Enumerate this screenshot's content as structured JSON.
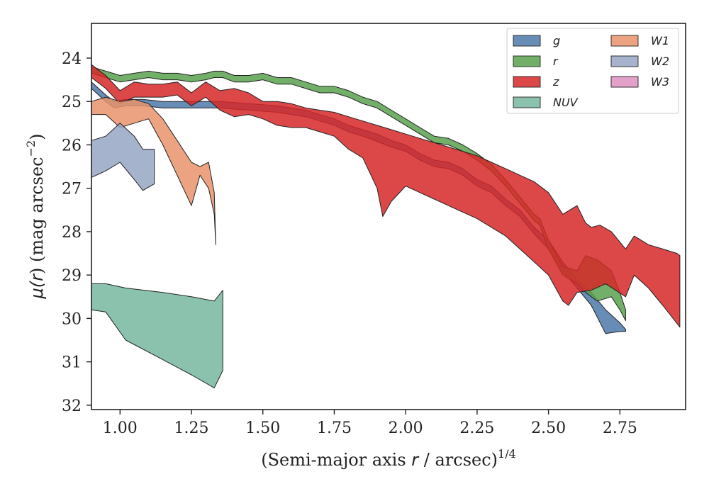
{
  "chart_data": {
    "type": "area",
    "x_axis": {
      "label_prefix": "(Semi-major axis ",
      "label_var": "r",
      "label_mid": " / arcsec)",
      "label_sup": "1/4",
      "ticks": [
        1.0,
        1.25,
        1.5,
        1.75,
        2.0,
        2.25,
        2.5,
        2.75
      ],
      "tick_labels": [
        "1.00",
        "1.25",
        "1.50",
        "1.75",
        "2.00",
        "2.25",
        "2.50",
        "2.75"
      ],
      "range": [
        0.9,
        2.98
      ]
    },
    "y_axis": {
      "label_mu": "μ(",
      "label_var": "r",
      "label_rest": ") (mag arcsec",
      "label_sup": "−2",
      "label_close": ")",
      "ticks": [
        24,
        25,
        26,
        27,
        28,
        29,
        30,
        31,
        32
      ],
      "tick_labels": [
        "24",
        "25",
        "26",
        "27",
        "28",
        "29",
        "30",
        "31",
        "32"
      ],
      "range": [
        32.1,
        23.2
      ],
      "inverted": true
    },
    "legend_position": "top-right",
    "legend_columns": 2,
    "series": [
      {
        "name": "g",
        "color": "#4c78a8",
        "upper": [
          [
            0.9,
            24.55
          ],
          [
            0.95,
            24.85
          ],
          [
            0.98,
            25.0
          ],
          [
            1.02,
            24.95
          ],
          [
            1.08,
            24.95
          ],
          [
            1.15,
            25.0
          ],
          [
            1.25,
            25.0
          ],
          [
            1.35,
            25.0
          ],
          [
            1.45,
            25.05
          ],
          [
            1.55,
            25.1
          ],
          [
            1.65,
            25.2
          ],
          [
            1.75,
            25.4
          ],
          [
            1.8,
            25.55
          ],
          [
            1.85,
            25.65
          ],
          [
            1.9,
            25.75
          ],
          [
            1.95,
            25.9
          ],
          [
            2.0,
            26.0
          ],
          [
            2.05,
            26.2
          ],
          [
            2.1,
            26.35
          ],
          [
            2.15,
            26.4
          ],
          [
            2.2,
            26.55
          ],
          [
            2.25,
            26.8
          ],
          [
            2.3,
            26.95
          ],
          [
            2.35,
            27.25
          ],
          [
            2.4,
            27.5
          ],
          [
            2.45,
            27.9
          ],
          [
            2.5,
            28.2
          ],
          [
            2.55,
            28.7
          ],
          [
            2.6,
            29.1
          ],
          [
            2.65,
            29.4
          ],
          [
            2.7,
            29.8
          ],
          [
            2.75,
            30.1
          ],
          [
            2.77,
            30.25
          ]
        ],
        "lower": [
          [
            0.9,
            24.7
          ],
          [
            0.95,
            25.0
          ],
          [
            0.98,
            25.15
          ],
          [
            1.02,
            25.1
          ],
          [
            1.08,
            25.1
          ],
          [
            1.15,
            25.15
          ],
          [
            1.25,
            25.15
          ],
          [
            1.35,
            25.15
          ],
          [
            1.45,
            25.2
          ],
          [
            1.55,
            25.25
          ],
          [
            1.65,
            25.35
          ],
          [
            1.75,
            25.55
          ],
          [
            1.8,
            25.7
          ],
          [
            1.85,
            25.8
          ],
          [
            1.9,
            25.92
          ],
          [
            1.95,
            26.05
          ],
          [
            2.0,
            26.15
          ],
          [
            2.05,
            26.35
          ],
          [
            2.1,
            26.5
          ],
          [
            2.15,
            26.55
          ],
          [
            2.2,
            26.7
          ],
          [
            2.25,
            26.95
          ],
          [
            2.3,
            27.1
          ],
          [
            2.35,
            27.4
          ],
          [
            2.4,
            27.65
          ],
          [
            2.45,
            28.05
          ],
          [
            2.5,
            28.4
          ],
          [
            2.55,
            28.9
          ],
          [
            2.6,
            29.3
          ],
          [
            2.65,
            29.7
          ],
          [
            2.7,
            30.35
          ],
          [
            2.75,
            30.3
          ],
          [
            2.77,
            30.3
          ]
        ]
      },
      {
        "name": "r",
        "color": "#59a14f",
        "upper": [
          [
            0.9,
            24.2
          ],
          [
            0.95,
            24.3
          ],
          [
            1.0,
            24.4
          ],
          [
            1.05,
            24.35
          ],
          [
            1.1,
            24.3
          ],
          [
            1.15,
            24.35
          ],
          [
            1.2,
            24.35
          ],
          [
            1.25,
            24.4
          ],
          [
            1.3,
            24.35
          ],
          [
            1.33,
            24.3
          ],
          [
            1.36,
            24.3
          ],
          [
            1.4,
            24.4
          ],
          [
            1.45,
            24.4
          ],
          [
            1.5,
            24.35
          ],
          [
            1.55,
            24.45
          ],
          [
            1.6,
            24.45
          ],
          [
            1.65,
            24.55
          ],
          [
            1.7,
            24.65
          ],
          [
            1.75,
            24.65
          ],
          [
            1.8,
            24.75
          ],
          [
            1.85,
            24.9
          ],
          [
            1.9,
            25.0
          ],
          [
            1.95,
            25.2
          ],
          [
            2.0,
            25.4
          ],
          [
            2.05,
            25.6
          ],
          [
            2.1,
            25.8
          ],
          [
            2.15,
            25.85
          ],
          [
            2.2,
            26.0
          ],
          [
            2.25,
            26.2
          ],
          [
            2.3,
            26.45
          ],
          [
            2.35,
            26.8
          ],
          [
            2.4,
            27.2
          ],
          [
            2.45,
            27.6
          ],
          [
            2.47,
            27.7
          ],
          [
            2.5,
            28.2
          ],
          [
            2.55,
            28.8
          ],
          [
            2.6,
            28.9
          ],
          [
            2.63,
            28.55
          ],
          [
            2.67,
            28.65
          ],
          [
            2.72,
            28.9
          ],
          [
            2.75,
            29.4
          ],
          [
            2.77,
            29.8
          ]
        ],
        "lower": [
          [
            0.9,
            24.35
          ],
          [
            0.95,
            24.45
          ],
          [
            1.0,
            24.55
          ],
          [
            1.05,
            24.5
          ],
          [
            1.1,
            24.45
          ],
          [
            1.15,
            24.5
          ],
          [
            1.2,
            24.5
          ],
          [
            1.25,
            24.55
          ],
          [
            1.3,
            24.5
          ],
          [
            1.33,
            24.45
          ],
          [
            1.36,
            24.45
          ],
          [
            1.4,
            24.55
          ],
          [
            1.45,
            24.55
          ],
          [
            1.5,
            24.5
          ],
          [
            1.55,
            24.6
          ],
          [
            1.6,
            24.6
          ],
          [
            1.65,
            24.7
          ],
          [
            1.7,
            24.8
          ],
          [
            1.75,
            24.8
          ],
          [
            1.8,
            24.9
          ],
          [
            1.85,
            25.05
          ],
          [
            1.9,
            25.15
          ],
          [
            1.95,
            25.35
          ],
          [
            2.0,
            25.55
          ],
          [
            2.05,
            25.75
          ],
          [
            2.1,
            25.95
          ],
          [
            2.15,
            26.0
          ],
          [
            2.2,
            26.15
          ],
          [
            2.25,
            26.35
          ],
          [
            2.3,
            26.6
          ],
          [
            2.35,
            26.95
          ],
          [
            2.4,
            27.35
          ],
          [
            2.45,
            27.75
          ],
          [
            2.47,
            27.85
          ],
          [
            2.5,
            28.4
          ],
          [
            2.55,
            29.0
          ],
          [
            2.6,
            29.2
          ],
          [
            2.63,
            29.4
          ],
          [
            2.67,
            29.6
          ],
          [
            2.72,
            29.5
          ],
          [
            2.75,
            29.8
          ],
          [
            2.77,
            30.05
          ]
        ]
      },
      {
        "name": "z",
        "color": "#d62728",
        "upper": [
          [
            0.9,
            24.15
          ],
          [
            0.95,
            24.4
          ],
          [
            1.0,
            24.75
          ],
          [
            1.05,
            24.55
          ],
          [
            1.1,
            24.6
          ],
          [
            1.15,
            24.6
          ],
          [
            1.2,
            24.55
          ],
          [
            1.25,
            24.8
          ],
          [
            1.3,
            24.55
          ],
          [
            1.35,
            24.75
          ],
          [
            1.4,
            24.7
          ],
          [
            1.45,
            24.8
          ],
          [
            1.5,
            25.0
          ],
          [
            1.55,
            25.0
          ],
          [
            1.6,
            25.05
          ],
          [
            1.65,
            25.15
          ],
          [
            1.7,
            25.2
          ],
          [
            1.75,
            25.25
          ],
          [
            1.8,
            25.35
          ],
          [
            1.85,
            25.45
          ],
          [
            1.9,
            25.55
          ],
          [
            1.95,
            25.65
          ],
          [
            2.0,
            25.75
          ],
          [
            2.05,
            25.85
          ],
          [
            2.1,
            25.95
          ],
          [
            2.15,
            26.05
          ],
          [
            2.2,
            26.15
          ],
          [
            2.25,
            26.25
          ],
          [
            2.3,
            26.4
          ],
          [
            2.35,
            26.55
          ],
          [
            2.4,
            26.7
          ],
          [
            2.45,
            26.85
          ],
          [
            2.5,
            27.1
          ],
          [
            2.55,
            27.6
          ],
          [
            2.6,
            27.4
          ],
          [
            2.63,
            27.8
          ],
          [
            2.65,
            27.9
          ],
          [
            2.68,
            27.85
          ],
          [
            2.72,
            28.0
          ],
          [
            2.77,
            28.4
          ],
          [
            2.8,
            28.1
          ],
          [
            2.85,
            28.3
          ],
          [
            2.9,
            28.4
          ],
          [
            2.95,
            28.5
          ],
          [
            2.96,
            28.55
          ]
        ],
        "lower": [
          [
            0.9,
            24.45
          ],
          [
            0.95,
            24.7
          ],
          [
            1.0,
            25.05
          ],
          [
            1.05,
            24.9
          ],
          [
            1.1,
            24.9
          ],
          [
            1.15,
            24.9
          ],
          [
            1.2,
            24.85
          ],
          [
            1.25,
            25.1
          ],
          [
            1.3,
            24.9
          ],
          [
            1.35,
            25.2
          ],
          [
            1.4,
            25.35
          ],
          [
            1.45,
            25.3
          ],
          [
            1.5,
            25.4
          ],
          [
            1.55,
            25.55
          ],
          [
            1.6,
            25.6
          ],
          [
            1.65,
            25.6
          ],
          [
            1.7,
            25.7
          ],
          [
            1.75,
            25.8
          ],
          [
            1.8,
            26.1
          ],
          [
            1.85,
            26.3
          ],
          [
            1.9,
            27.0
          ],
          [
            1.92,
            27.65
          ],
          [
            1.95,
            27.3
          ],
          [
            2.0,
            26.95
          ],
          [
            2.05,
            27.1
          ],
          [
            2.1,
            27.25
          ],
          [
            2.15,
            27.4
          ],
          [
            2.2,
            27.55
          ],
          [
            2.25,
            27.7
          ],
          [
            2.3,
            27.9
          ],
          [
            2.35,
            28.1
          ],
          [
            2.4,
            28.4
          ],
          [
            2.45,
            28.7
          ],
          [
            2.5,
            29.0
          ],
          [
            2.55,
            29.6
          ],
          [
            2.57,
            29.7
          ],
          [
            2.6,
            29.4
          ],
          [
            2.65,
            29.35
          ],
          [
            2.7,
            29.2
          ],
          [
            2.77,
            29.5
          ],
          [
            2.8,
            29.0
          ],
          [
            2.85,
            29.3
          ],
          [
            2.9,
            29.7
          ],
          [
            2.96,
            30.2
          ]
        ]
      },
      {
        "name": "NUV",
        "color": "#76b7a0",
        "upper": [
          [
            0.9,
            29.2
          ],
          [
            0.95,
            29.2
          ],
          [
            1.02,
            29.3
          ],
          [
            1.15,
            29.4
          ],
          [
            1.25,
            29.5
          ],
          [
            1.33,
            29.6
          ],
          [
            1.36,
            29.35
          ]
        ],
        "lower": [
          [
            0.9,
            29.8
          ],
          [
            0.95,
            29.85
          ],
          [
            1.02,
            30.5
          ],
          [
            1.15,
            30.95
          ],
          [
            1.25,
            31.3
          ],
          [
            1.33,
            31.6
          ],
          [
            1.36,
            31.2
          ]
        ]
      },
      {
        "name": "W1",
        "color": "#e8936b",
        "upper": [
          [
            0.9,
            25.0
          ],
          [
            0.95,
            24.9
          ],
          [
            1.0,
            25.0
          ],
          [
            1.05,
            24.95
          ],
          [
            1.1,
            25.05
          ],
          [
            1.15,
            25.4
          ],
          [
            1.2,
            25.9
          ],
          [
            1.25,
            26.4
          ],
          [
            1.28,
            26.5
          ],
          [
            1.31,
            26.4
          ],
          [
            1.33,
            27.1
          ],
          [
            1.335,
            28.3
          ]
        ],
        "lower": [
          [
            0.9,
            25.3
          ],
          [
            0.95,
            25.3
          ],
          [
            1.0,
            25.6
          ],
          [
            1.05,
            25.5
          ],
          [
            1.1,
            25.4
          ],
          [
            1.15,
            26.0
          ],
          [
            1.2,
            26.7
          ],
          [
            1.25,
            27.4
          ],
          [
            1.28,
            26.7
          ],
          [
            1.31,
            27.0
          ],
          [
            1.33,
            27.6
          ],
          [
            1.335,
            28.3
          ]
        ]
      },
      {
        "name": "W2",
        "color": "#97a6c4",
        "upper": [
          [
            0.9,
            25.9
          ],
          [
            0.95,
            25.8
          ],
          [
            1.0,
            25.5
          ],
          [
            1.05,
            25.8
          ],
          [
            1.08,
            26.1
          ],
          [
            1.12,
            26.1
          ]
        ],
        "lower": [
          [
            0.9,
            26.75
          ],
          [
            0.95,
            26.6
          ],
          [
            1.0,
            26.4
          ],
          [
            1.05,
            26.8
          ],
          [
            1.08,
            27.05
          ],
          [
            1.12,
            26.9
          ]
        ]
      },
      {
        "name": "W3",
        "color": "#de8fc0",
        "upper": [],
        "lower": []
      }
    ]
  }
}
